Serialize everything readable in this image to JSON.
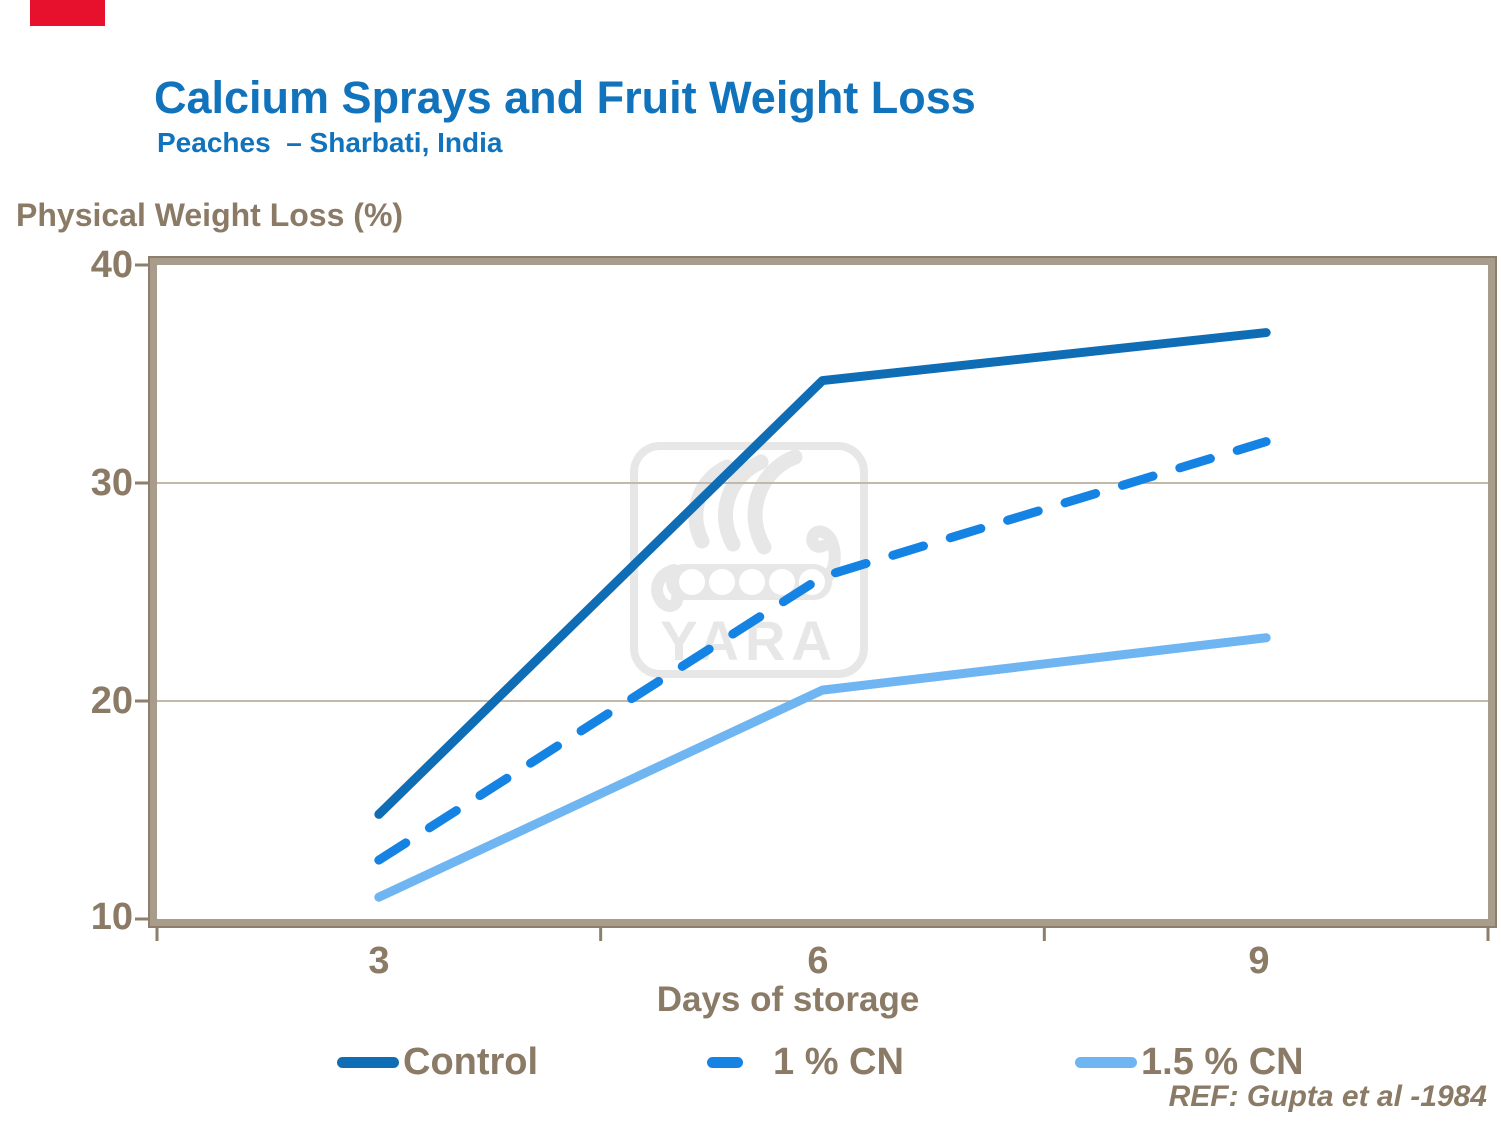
{
  "header": {
    "title": "Calcium Sprays and Fruit Weight Loss",
    "subtitle": "Peaches  – Sharbati, India",
    "title_color": "#1173BC"
  },
  "accent_bar": {
    "color": "#E8112D"
  },
  "watermark": {
    "label": "YARA",
    "color": "#E7E7E7"
  },
  "footer": {
    "ref": "REF: Gupta et al -1984"
  },
  "chart_data": {
    "type": "line",
    "title": "Calcium Sprays and Fruit Weight Loss",
    "subtitle": "Peaches – Sharbati, India",
    "x": [
      3,
      6,
      9
    ],
    "x_labels": [
      "3",
      "6",
      "9"
    ],
    "xlabel": "Days of storage",
    "ylabel": "Physical Weight Loss (%)",
    "ylim": [
      10,
      40
    ],
    "yticks": [
      40,
      30,
      20,
      10
    ],
    "grid": "horizontal-only",
    "legend_position": "bottom",
    "text_color": "#8B7B66",
    "axis_color": "#A89C8A",
    "axis_edge_color": "#8D7F6B",
    "grid_color": "#C3B9AA",
    "series": [
      {
        "name": "Control",
        "values": [
          14.8,
          34.7,
          36.9
        ],
        "color": "#0F6DB5",
        "line_style": "solid"
      },
      {
        "name": "1 % CN",
        "values": [
          12.7,
          25.7,
          31.9
        ],
        "color": "#1583E3",
        "line_style": "dashed"
      },
      {
        "name": "1.5 % CN",
        "values": [
          11.0,
          20.5,
          22.9
        ],
        "color": "#6FB5F2",
        "line_style": "solid"
      }
    ]
  }
}
